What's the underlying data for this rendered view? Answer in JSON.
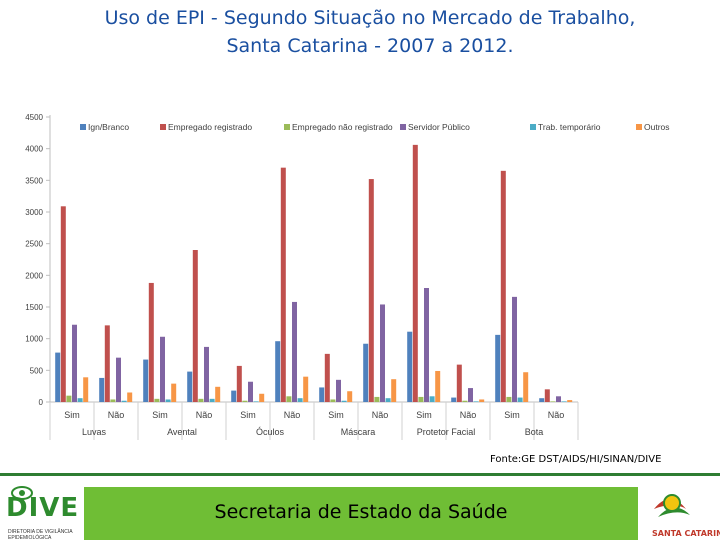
{
  "title": {
    "line1": "Uso de EPI - Segundo Situação no Mercado de Trabalho,",
    "line2": "Santa Catarina - 2007 a 2012."
  },
  "source": "Fonte:GE DST/AIDS/HI/SINAN/DIVE",
  "footer": {
    "text": "Secretaria de Estado da Saúde",
    "dive_logo": "DIVE",
    "dive_sub1": "DIRETORIA DE VIGILÂNCIA",
    "dive_sub2": "EPIDEMIOLÓGICA",
    "sc_logo": "SANTA CATARINA"
  },
  "chart_data": {
    "type": "bar",
    "ylim": [
      0,
      4500
    ],
    "yticks": [
      0,
      500,
      1000,
      1500,
      2000,
      2500,
      3000,
      3500,
      4000,
      4500
    ],
    "legend_position": "top",
    "grid": false,
    "groups": [
      "Luvas",
      "Avental",
      "Óculos",
      "Máscara",
      "Protetor Facial",
      "Bota"
    ],
    "categories": [
      "Sim",
      "Não",
      "Sim",
      "Não",
      "Sim",
      "Não",
      "Sim",
      "Não",
      "Sim",
      "Não",
      "Sim",
      "Não"
    ],
    "series": [
      {
        "name": "Ign/Branco",
        "color": "#4f81bd",
        "values": [
          780,
          380,
          670,
          480,
          180,
          960,
          230,
          920,
          1110,
          70,
          1060,
          60
        ]
      },
      {
        "name": "Empregado registrado",
        "color": "#c0504d",
        "values": [
          3090,
          1210,
          1880,
          2400,
          570,
          3700,
          760,
          3520,
          4060,
          590,
          3650,
          200
        ]
      },
      {
        "name": "Empregado não registrado",
        "color": "#9bbb59",
        "values": [
          100,
          40,
          50,
          50,
          20,
          90,
          40,
          80,
          80,
          20,
          80,
          10
        ]
      },
      {
        "name": "Servidor Público",
        "color": "#8064a2",
        "values": [
          1220,
          700,
          1030,
          870,
          320,
          1580,
          350,
          1540,
          1800,
          220,
          1660,
          90
        ]
      },
      {
        "name": "Trab. temporário",
        "color": "#4bacc6",
        "values": [
          60,
          20,
          40,
          50,
          10,
          60,
          20,
          60,
          90,
          10,
          70,
          10
        ]
      },
      {
        "name": "Outros",
        "color": "#f79646",
        "values": [
          390,
          150,
          290,
          240,
          130,
          400,
          170,
          360,
          490,
          40,
          470,
          30
        ]
      }
    ]
  }
}
